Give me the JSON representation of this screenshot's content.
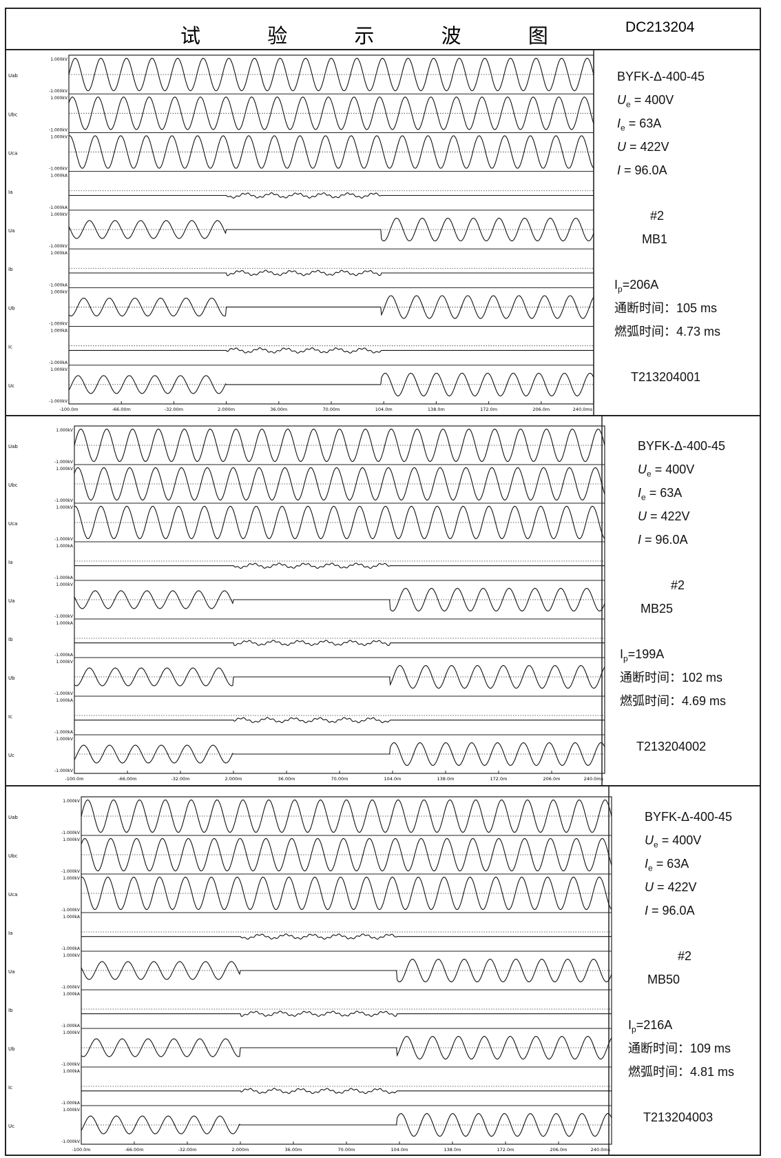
{
  "title": "试 验 示 波 图",
  "doc_id": "DC213204",
  "units": {
    "kv_pos": "1.000kV",
    "kv_neg": "-1.000kV",
    "ka_pos": "1.000kA",
    "ka_neg": "-1.000kA"
  },
  "channels": [
    "Uab",
    "Ubc",
    "Uca",
    "Ia",
    "Ua",
    "Ib",
    "Ub",
    "Ic",
    "Uc"
  ],
  "channel_kinds": [
    "kV",
    "kV",
    "kV",
    "kA",
    "kV",
    "kA",
    "kV",
    "kA",
    "kV"
  ],
  "x_ticks": [
    "-100.0m",
    "-66.00m",
    "-32.00m",
    "2.000m",
    "36.00m",
    "70.00m",
    "104.0m",
    "138.0m",
    "172.0m",
    "206.0m",
    "240.0ms"
  ],
  "tests": [
    {
      "model": "BYFK-Δ-400-45",
      "ue_label": "U",
      "ue_sub": "e",
      "ue_value": " = 400V",
      "ie_label": "I",
      "ie_sub": "e",
      "ie_value": " = 63A",
      "u_label": "U",
      "u_value": " = 422V",
      "i_label": "I",
      "i_value": " = 96.0A",
      "unit_no": "#2",
      "sample": "MB1",
      "ip_label": "I",
      "ip_sub": "p",
      "ip_value": "=206A",
      "break_time": "通断时间：105 ms",
      "arc_time": "燃弧时间：4.73 ms",
      "record_id": "T213204001"
    },
    {
      "model": "BYFK-Δ-400-45",
      "ue_label": "U",
      "ue_sub": "e",
      "ue_value": " = 400V",
      "ie_label": "I",
      "ie_sub": "e",
      "ie_value": " = 63A",
      "u_label": "U",
      "u_value": " = 422V",
      "i_label": "I",
      "i_value": " = 96.0A",
      "unit_no": "#2",
      "sample": "MB25",
      "ip_label": "I",
      "ip_sub": "p",
      "ip_value": "=199A",
      "break_time": "通断时间：102 ms",
      "arc_time": "燃弧时间：4.69 ms",
      "record_id": "T213204002"
    },
    {
      "model": "BYFK-Δ-400-45",
      "ue_label": "U",
      "ue_sub": "e",
      "ue_value": " = 400V",
      "ie_label": "I",
      "ie_sub": "e",
      "ie_value": " = 63A",
      "u_label": "U",
      "u_value": " = 422V",
      "i_label": "I",
      "i_value": " = 96.0A",
      "unit_no": "#2",
      "sample": "MB50",
      "ip_label": "I",
      "ip_sub": "p",
      "ip_value": "=216A",
      "break_time": "通断时间：109  ms",
      "arc_time": "燃弧时间：4.81 ms",
      "record_id": "T213204003"
    }
  ]
}
